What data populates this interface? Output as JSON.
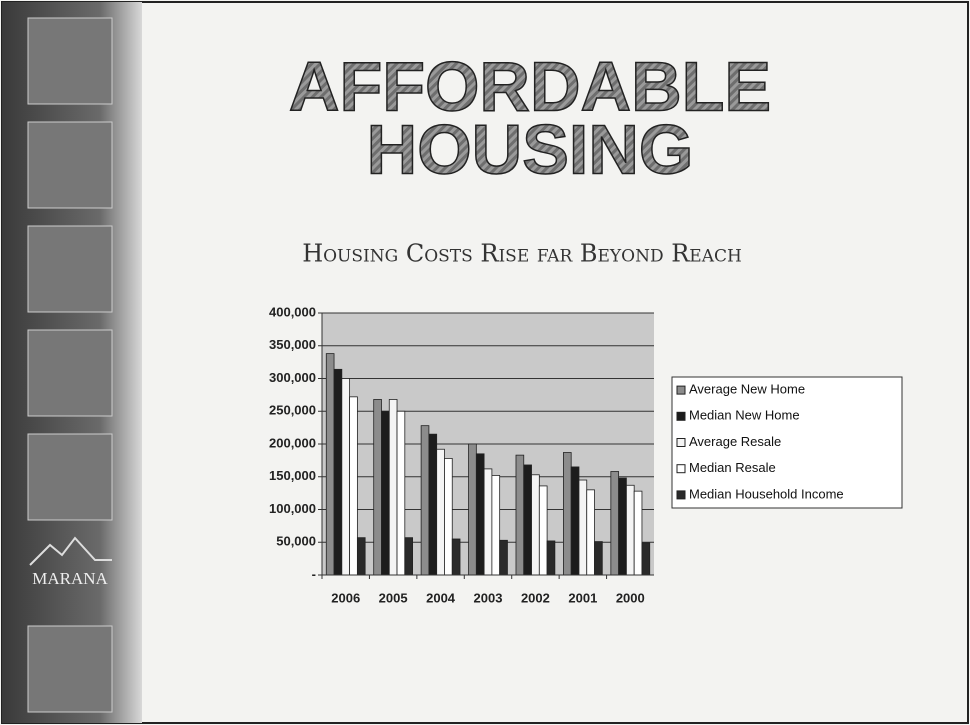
{
  "slide": {
    "heading": [
      "AFFORDABLE",
      "HOUSING"
    ],
    "logo": "MARANA"
  },
  "chart_data": {
    "type": "bar",
    "title": "Housing Costs Rise far Beyond Reach",
    "categories": [
      "2006",
      "2005",
      "2004",
      "2003",
      "2002",
      "2001",
      "2000"
    ],
    "series": [
      {
        "name": "Average New Home",
        "color": "#8c8c8c",
        "values": [
          338000,
          268000,
          228000,
          200000,
          183000,
          187000,
          158000
        ]
      },
      {
        "name": "Median New Home",
        "color": "#1c1c1c",
        "values": [
          314000,
          250000,
          215000,
          185000,
          168000,
          165000,
          148000
        ]
      },
      {
        "name": "Average Resale",
        "color": "#f4f4f4",
        "values": [
          300000,
          268000,
          192000,
          162000,
          153000,
          145000,
          137000
        ]
      },
      {
        "name": "Median Resale",
        "color": "#ffffff",
        "values": [
          272000,
          250000,
          178000,
          152000,
          136000,
          130000,
          128000
        ]
      },
      {
        "name": "Median Household Income",
        "color": "#2a2a2a",
        "values": [
          57000,
          57000,
          55000,
          53000,
          52000,
          51000,
          49000
        ]
      }
    ],
    "ylim": [
      0,
      400000
    ],
    "yticks": [
      {
        "value": 0,
        "label": "-"
      },
      {
        "value": 50000,
        "label": "50,000"
      },
      {
        "value": 100000,
        "label": "100,000"
      },
      {
        "value": 150000,
        "label": "150,000"
      },
      {
        "value": 200000,
        "label": "200,000"
      },
      {
        "value": 250000,
        "label": "250,000"
      },
      {
        "value": 300000,
        "label": "300,000"
      },
      {
        "value": 350000,
        "label": "350,000"
      },
      {
        "value": 400000,
        "label": "400,000"
      }
    ],
    "grid": true,
    "legend": "right"
  }
}
